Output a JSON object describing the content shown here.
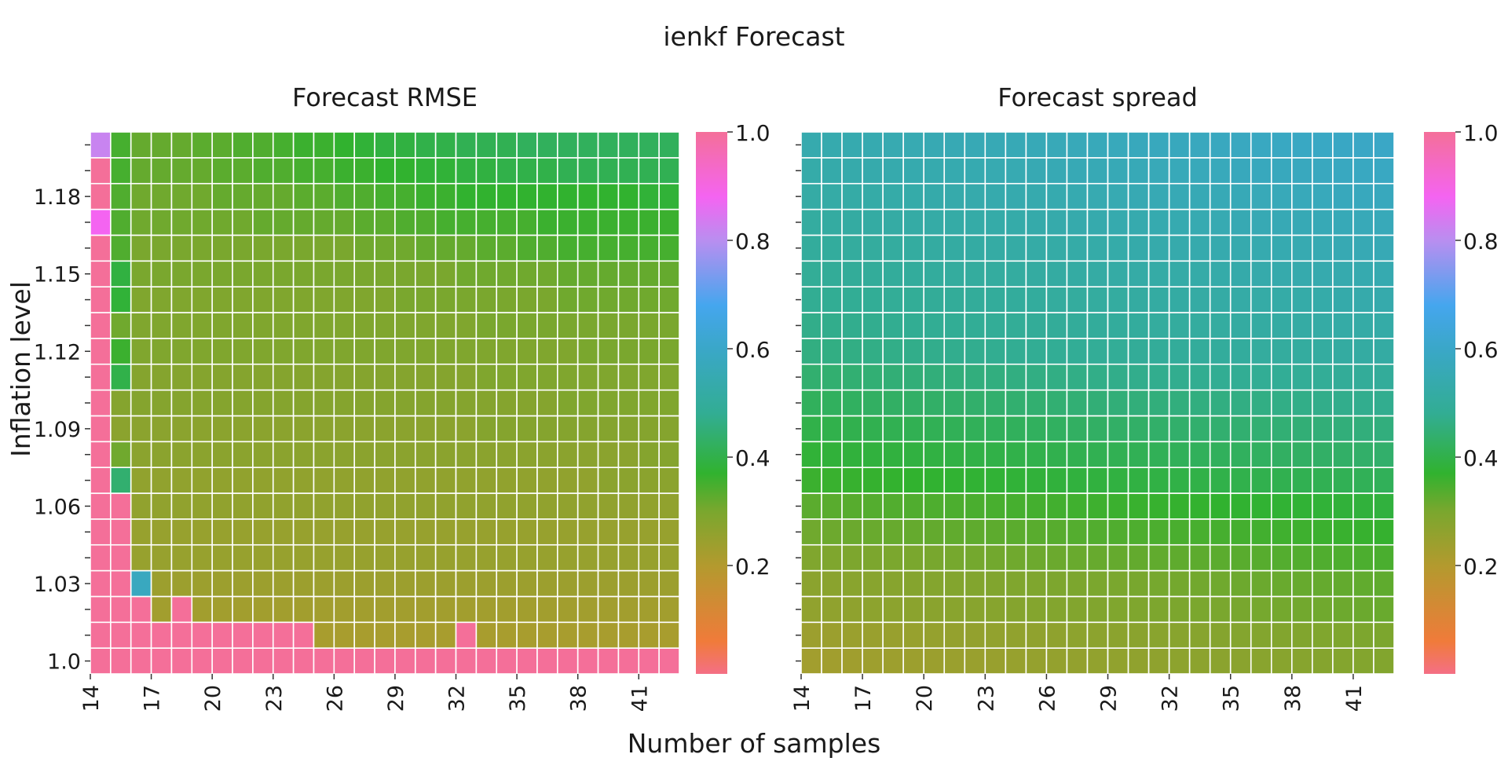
{
  "figure": {
    "suptitle": "ienkf Forecast",
    "xlabel": "Number of samples",
    "ylabel": "Inflation level"
  },
  "colorbar": {
    "ticks": [
      "1.0",
      "0.8",
      "0.6",
      "0.4",
      "0.2"
    ],
    "tick_values": [
      1.0,
      0.8,
      0.6,
      0.4,
      0.2
    ],
    "range": [
      0.0,
      1.0
    ],
    "colormap_stops": [
      {
        "v": 0.0,
        "color": "#f46f85"
      },
      {
        "v": 0.06,
        "color": "#f07b3a"
      },
      {
        "v": 0.2,
        "color": "#b39a2e"
      },
      {
        "v": 0.3,
        "color": "#7aa72e"
      },
      {
        "v": 0.37,
        "color": "#31b22f"
      },
      {
        "v": 0.48,
        "color": "#32ad93"
      },
      {
        "v": 0.6,
        "color": "#3aa7c8"
      },
      {
        "v": 0.68,
        "color": "#45a6ee"
      },
      {
        "v": 0.8,
        "color": "#b98ef0"
      },
      {
        "v": 0.88,
        "color": "#f464f1"
      },
      {
        "v": 1.0,
        "color": "#f46f99"
      }
    ]
  },
  "chart_data": [
    {
      "type": "heatmap",
      "title": "Forecast RMSE",
      "x": [
        14,
        15,
        16,
        17,
        18,
        19,
        20,
        21,
        22,
        23,
        24,
        25,
        26,
        27,
        28,
        29,
        30,
        31,
        32,
        33,
        34,
        35,
        36,
        37,
        38,
        39,
        40,
        41,
        42
      ],
      "x_tick_labels": [
        "14",
        "17",
        "20",
        "23",
        "26",
        "29",
        "32",
        "35",
        "38",
        "41"
      ],
      "y": [
        1.0,
        1.01,
        1.02,
        1.03,
        1.04,
        1.05,
        1.06,
        1.07,
        1.08,
        1.09,
        1.1,
        1.11,
        1.12,
        1.13,
        1.14,
        1.15,
        1.16,
        1.17,
        1.18,
        1.19,
        1.2
      ],
      "y_tick_labels": [
        "1.0",
        "1.03",
        "1.06",
        "1.09",
        "1.12",
        "1.15",
        "1.18"
      ],
      "vmin": 0.0,
      "vmax": 1.0,
      "values": [
        [
          1.0,
          1.0,
          1.0,
          1.0,
          1.0,
          1.0,
          1.0,
          1.0,
          1.0,
          1.0,
          1.0,
          1.0,
          1.0,
          1.0,
          1.0,
          1.0,
          1.0,
          1.0,
          1.0,
          1.0,
          1.0,
          1.0,
          1.0,
          1.0,
          1.0,
          1.0,
          1.0,
          1.0,
          1.0
        ],
        [
          1.0,
          1.0,
          1.0,
          1.0,
          1.0,
          1.0,
          1.0,
          1.0,
          1.0,
          1.0,
          1.0,
          0.22,
          0.22,
          0.22,
          0.22,
          0.22,
          0.22,
          0.22,
          1.0,
          0.22,
          0.22,
          0.22,
          0.22,
          0.22,
          0.22,
          0.22,
          0.22,
          0.22,
          0.22
        ],
        [
          1.0,
          1.0,
          1.0,
          0.23,
          1.0,
          0.23,
          0.23,
          0.23,
          0.23,
          0.23,
          0.23,
          0.23,
          0.23,
          0.23,
          0.23,
          0.23,
          0.23,
          0.23,
          0.23,
          0.23,
          0.23,
          0.23,
          0.23,
          0.23,
          0.23,
          0.23,
          0.23,
          0.23,
          0.23
        ],
        [
          1.0,
          1.0,
          0.58,
          0.24,
          0.24,
          0.24,
          0.24,
          0.24,
          0.24,
          0.24,
          0.24,
          0.24,
          0.24,
          0.24,
          0.24,
          0.24,
          0.24,
          0.24,
          0.24,
          0.24,
          0.24,
          0.24,
          0.24,
          0.24,
          0.24,
          0.24,
          0.24,
          0.24,
          0.24
        ],
        [
          1.0,
          1.0,
          0.25,
          0.25,
          0.25,
          0.25,
          0.25,
          0.25,
          0.25,
          0.25,
          0.25,
          0.25,
          0.25,
          0.25,
          0.25,
          0.25,
          0.25,
          0.25,
          0.25,
          0.25,
          0.25,
          0.25,
          0.25,
          0.25,
          0.25,
          0.25,
          0.25,
          0.25,
          0.25
        ],
        [
          1.0,
          1.0,
          0.25,
          0.25,
          0.25,
          0.25,
          0.25,
          0.25,
          0.25,
          0.25,
          0.25,
          0.25,
          0.25,
          0.25,
          0.25,
          0.25,
          0.25,
          0.25,
          0.25,
          0.25,
          0.25,
          0.25,
          0.25,
          0.25,
          0.25,
          0.25,
          0.25,
          0.25,
          0.25
        ],
        [
          1.0,
          1.0,
          0.26,
          0.26,
          0.26,
          0.26,
          0.26,
          0.26,
          0.26,
          0.26,
          0.26,
          0.26,
          0.26,
          0.26,
          0.26,
          0.26,
          0.26,
          0.26,
          0.26,
          0.26,
          0.26,
          0.26,
          0.26,
          0.26,
          0.26,
          0.26,
          0.26,
          0.26,
          0.26
        ],
        [
          1.0,
          0.44,
          0.26,
          0.26,
          0.26,
          0.26,
          0.26,
          0.26,
          0.26,
          0.26,
          0.26,
          0.26,
          0.26,
          0.26,
          0.26,
          0.26,
          0.26,
          0.26,
          0.26,
          0.26,
          0.26,
          0.26,
          0.26,
          0.26,
          0.26,
          0.27,
          0.27,
          0.27,
          0.27
        ],
        [
          1.0,
          0.31,
          0.27,
          0.27,
          0.27,
          0.27,
          0.27,
          0.27,
          0.27,
          0.27,
          0.27,
          0.27,
          0.27,
          0.27,
          0.27,
          0.27,
          0.27,
          0.27,
          0.27,
          0.27,
          0.27,
          0.27,
          0.27,
          0.27,
          0.27,
          0.27,
          0.27,
          0.28,
          0.28
        ],
        [
          1.0,
          0.27,
          0.27,
          0.27,
          0.27,
          0.27,
          0.27,
          0.27,
          0.27,
          0.27,
          0.27,
          0.27,
          0.27,
          0.27,
          0.27,
          0.27,
          0.27,
          0.27,
          0.27,
          0.28,
          0.28,
          0.28,
          0.28,
          0.28,
          0.28,
          0.28,
          0.28,
          0.28,
          0.28
        ],
        [
          1.0,
          0.28,
          0.28,
          0.28,
          0.28,
          0.28,
          0.28,
          0.28,
          0.28,
          0.28,
          0.28,
          0.28,
          0.28,
          0.28,
          0.28,
          0.28,
          0.28,
          0.28,
          0.28,
          0.28,
          0.28,
          0.28,
          0.28,
          0.29,
          0.29,
          0.29,
          0.29,
          0.29,
          0.29
        ],
        [
          1.0,
          0.4,
          0.28,
          0.28,
          0.28,
          0.28,
          0.28,
          0.28,
          0.28,
          0.28,
          0.28,
          0.28,
          0.28,
          0.28,
          0.28,
          0.28,
          0.28,
          0.28,
          0.28,
          0.29,
          0.29,
          0.29,
          0.29,
          0.29,
          0.29,
          0.29,
          0.29,
          0.29,
          0.29
        ],
        [
          1.0,
          0.36,
          0.29,
          0.29,
          0.29,
          0.29,
          0.29,
          0.29,
          0.29,
          0.29,
          0.29,
          0.29,
          0.29,
          0.29,
          0.29,
          0.29,
          0.29,
          0.29,
          0.29,
          0.29,
          0.29,
          0.29,
          0.29,
          0.29,
          0.3,
          0.3,
          0.3,
          0.3,
          0.3
        ],
        [
          1.0,
          0.31,
          0.29,
          0.29,
          0.29,
          0.29,
          0.29,
          0.29,
          0.29,
          0.29,
          0.29,
          0.29,
          0.29,
          0.29,
          0.29,
          0.29,
          0.29,
          0.29,
          0.29,
          0.3,
          0.3,
          0.3,
          0.3,
          0.3,
          0.3,
          0.3,
          0.3,
          0.3,
          0.3
        ],
        [
          1.0,
          0.38,
          0.29,
          0.29,
          0.29,
          0.29,
          0.29,
          0.29,
          0.29,
          0.29,
          0.29,
          0.29,
          0.29,
          0.29,
          0.29,
          0.3,
          0.3,
          0.3,
          0.3,
          0.3,
          0.3,
          0.3,
          0.3,
          0.31,
          0.31,
          0.31,
          0.31,
          0.31,
          0.31
        ],
        [
          1.0,
          0.39,
          0.3,
          0.3,
          0.3,
          0.3,
          0.3,
          0.3,
          0.3,
          0.3,
          0.3,
          0.3,
          0.3,
          0.3,
          0.3,
          0.3,
          0.3,
          0.3,
          0.31,
          0.31,
          0.31,
          0.31,
          0.31,
          0.32,
          0.32,
          0.32,
          0.32,
          0.32,
          0.32
        ],
        [
          1.0,
          0.34,
          0.3,
          0.3,
          0.3,
          0.3,
          0.3,
          0.3,
          0.3,
          0.3,
          0.3,
          0.3,
          0.3,
          0.31,
          0.31,
          0.31,
          0.32,
          0.32,
          0.32,
          0.33,
          0.33,
          0.34,
          0.34,
          0.35,
          0.35,
          0.35,
          0.35,
          0.35,
          0.35
        ],
        [
          0.88,
          0.34,
          0.31,
          0.31,
          0.31,
          0.31,
          0.31,
          0.31,
          0.32,
          0.32,
          0.32,
          0.32,
          0.32,
          0.33,
          0.33,
          0.34,
          0.34,
          0.35,
          0.35,
          0.35,
          0.35,
          0.35,
          0.36,
          0.36,
          0.36,
          0.36,
          0.36,
          0.36,
          0.36
        ],
        [
          1.0,
          0.34,
          0.31,
          0.31,
          0.31,
          0.31,
          0.32,
          0.32,
          0.32,
          0.32,
          0.33,
          0.33,
          0.34,
          0.34,
          0.35,
          0.35,
          0.36,
          0.36,
          0.37,
          0.37,
          0.37,
          0.37,
          0.37,
          0.37,
          0.37,
          0.37,
          0.37,
          0.38,
          0.38
        ],
        [
          1.0,
          0.35,
          0.32,
          0.32,
          0.32,
          0.32,
          0.33,
          0.33,
          0.34,
          0.34,
          0.35,
          0.35,
          0.36,
          0.36,
          0.37,
          0.37,
          0.38,
          0.38,
          0.39,
          0.39,
          0.4,
          0.4,
          0.4,
          0.41,
          0.41,
          0.41,
          0.41,
          0.41,
          0.41
        ],
        [
          0.82,
          0.35,
          0.32,
          0.32,
          0.32,
          0.33,
          0.33,
          0.34,
          0.34,
          0.35,
          0.36,
          0.36,
          0.37,
          0.38,
          0.39,
          0.39,
          0.4,
          0.4,
          0.41,
          0.41,
          0.41,
          0.42,
          0.42,
          0.42,
          0.42,
          0.42,
          0.42,
          0.42,
          0.42
        ]
      ]
    },
    {
      "type": "heatmap",
      "title": "Forecast spread",
      "x": [
        14,
        15,
        16,
        17,
        18,
        19,
        20,
        21,
        22,
        23,
        24,
        25,
        26,
        27,
        28,
        29,
        30,
        31,
        32,
        33,
        34,
        35,
        36,
        37,
        38,
        39,
        40,
        41,
        42
      ],
      "x_tick_labels": [
        "14",
        "17",
        "20",
        "23",
        "26",
        "29",
        "32",
        "35",
        "38",
        "41"
      ],
      "y": [
        1.0,
        1.01,
        1.02,
        1.03,
        1.04,
        1.05,
        1.06,
        1.07,
        1.08,
        1.09,
        1.1,
        1.11,
        1.12,
        1.13,
        1.14,
        1.15,
        1.16,
        1.17,
        1.18,
        1.19,
        1.2
      ],
      "y_tick_labels": [
        "1.0",
        "1.03",
        "1.06",
        "1.09",
        "1.12",
        "1.15",
        "1.18"
      ],
      "vmin": 0.0,
      "vmax": 1.0,
      "row_values_bottom_to_top": [
        0.23,
        0.24,
        0.26,
        0.27,
        0.29,
        0.31,
        0.33,
        0.36,
        0.38,
        0.4,
        0.42,
        0.44,
        0.46,
        0.47,
        0.48,
        0.49,
        0.5,
        0.51,
        0.52,
        0.53,
        0.54
      ],
      "column_increment": 0.002
    }
  ]
}
